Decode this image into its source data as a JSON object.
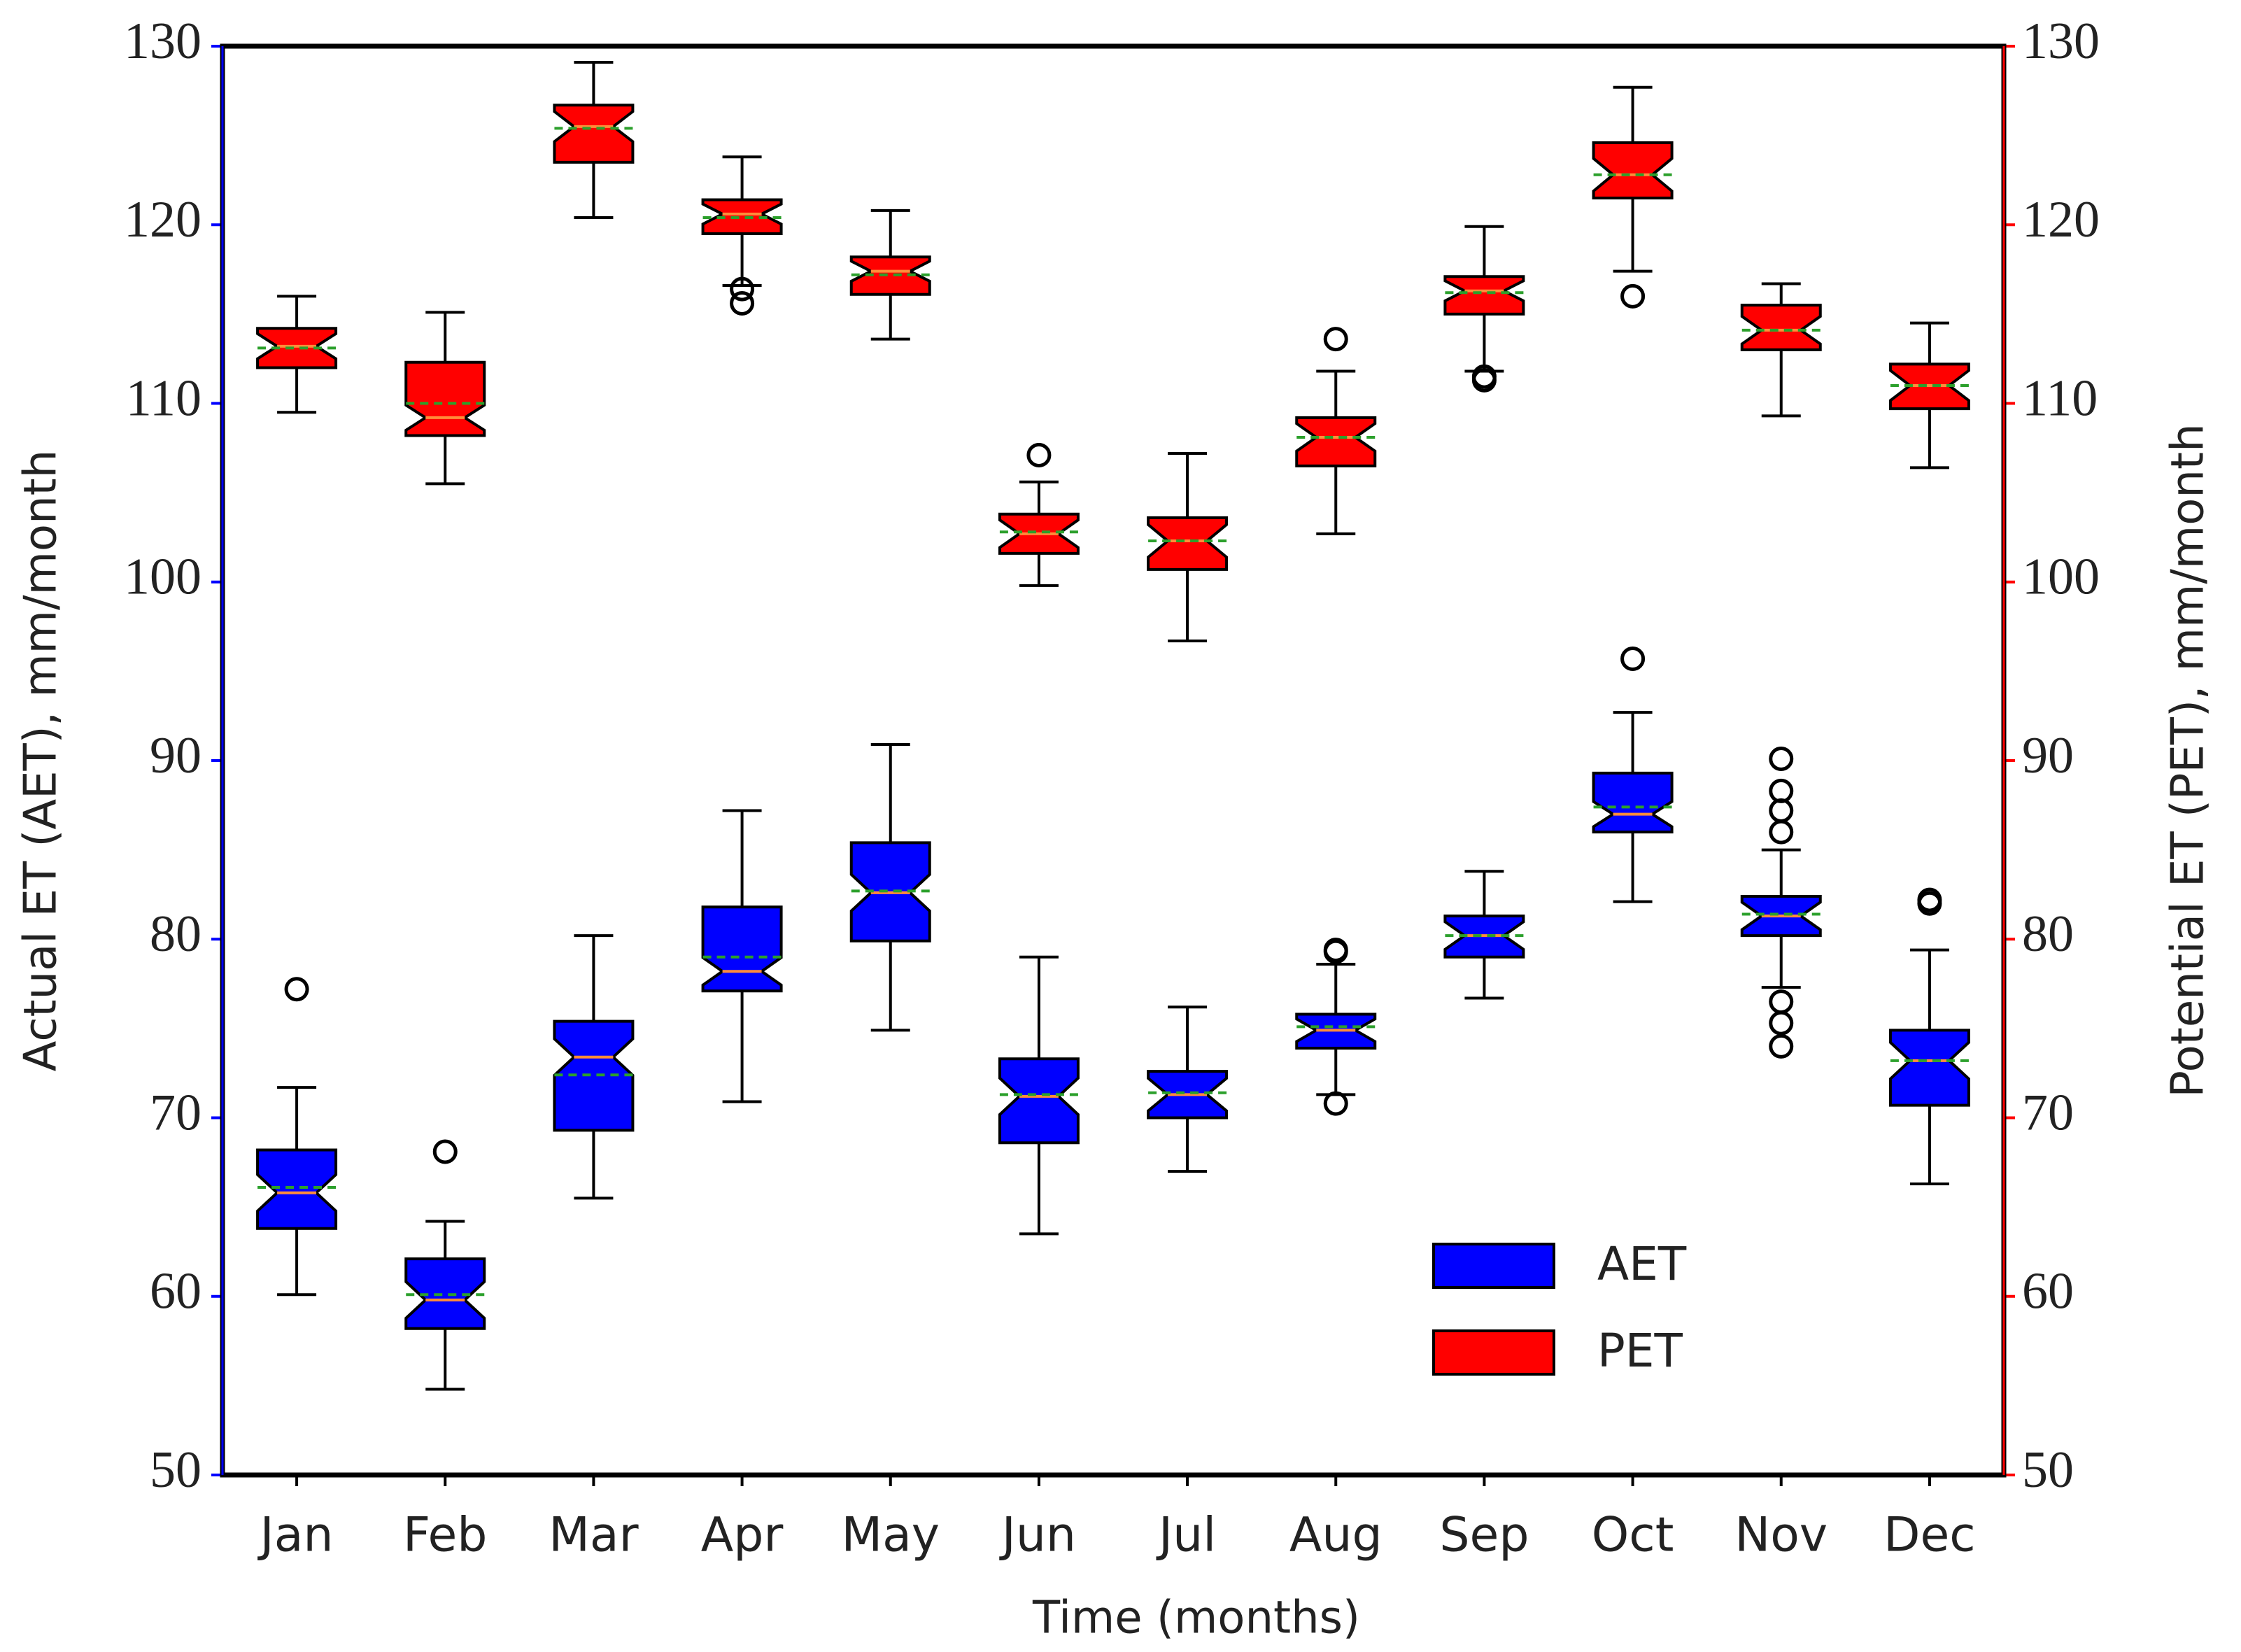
{
  "chart_data": {
    "type": "box",
    "notch": true,
    "categories": [
      "Jan",
      "Feb",
      "Mar",
      "Apr",
      "May",
      "Jun",
      "Jul",
      "Aug",
      "Sep",
      "Oct",
      "Nov",
      "Dec"
    ],
    "x_label": "Time (months)",
    "y_label": "Actual ET (AET), mm/month",
    "y2_label": "Potential ET (PET), mm/month",
    "ylim": [
      50,
      130
    ],
    "yticks": [
      50,
      60,
      70,
      80,
      90,
      100,
      110,
      120,
      130
    ],
    "y2lim": [
      50,
      130
    ],
    "y2ticks": [
      50,
      60,
      70,
      80,
      90,
      100,
      110,
      120,
      130
    ],
    "legend": "lower right",
    "median_color": "#ff8c3a",
    "mean_color": "#2ca02c",
    "series": [
      {
        "name": "AET",
        "color": "#0000ff",
        "axis": "y",
        "whislo": [
          60.1,
          54.8,
          65.5,
          70.9,
          74.9,
          63.5,
          67.0,
          71.3,
          76.7,
          82.1,
          77.3,
          66.3
        ],
        "q1": [
          63.8,
          58.2,
          69.3,
          77.1,
          79.9,
          68.6,
          70.0,
          73.9,
          79.0,
          86.0,
          80.2,
          70.7
        ],
        "med": [
          65.8,
          59.8,
          73.4,
          78.2,
          82.6,
          71.2,
          71.3,
          74.9,
          80.2,
          87.0,
          81.3,
          73.2
        ],
        "mean": [
          66.1,
          60.1,
          72.4,
          79.0,
          82.7,
          71.3,
          71.4,
          75.1,
          80.2,
          87.4,
          81.4,
          73.2
        ],
        "q3": [
          68.2,
          62.1,
          75.4,
          81.8,
          85.4,
          73.3,
          72.6,
          75.8,
          81.3,
          89.3,
          82.4,
          74.9
        ],
        "whishi": [
          71.7,
          64.2,
          80.2,
          87.2,
          90.9,
          79.0,
          76.2,
          78.6,
          83.8,
          92.7,
          85.0,
          79.4
        ],
        "fliers": [
          [
            77.2
          ],
          [
            68.1
          ],
          [],
          [],
          [],
          [],
          [],
          [
            79.4,
            79.3,
            70.8
          ],
          [],
          [
            95.7
          ],
          [
            90.1,
            88.3,
            87.2,
            86.0,
            76.5,
            75.3,
            74.0
          ],
          [
            82.2,
            82.0
          ]
        ]
      },
      {
        "name": "PET",
        "color": "#ff0000",
        "axis": "y2",
        "whislo": [
          109.5,
          105.5,
          120.4,
          116.6,
          113.6,
          99.8,
          96.7,
          102.7,
          111.8,
          117.4,
          109.3,
          106.4
        ],
        "q1": [
          112.0,
          108.2,
          123.5,
          119.5,
          116.1,
          101.6,
          100.7,
          106.5,
          115.0,
          121.5,
          113.0,
          109.7
        ],
        "med": [
          113.2,
          109.2,
          125.5,
          120.6,
          117.4,
          102.7,
          102.3,
          108.1,
          116.3,
          122.8,
          114.1,
          111.0
        ],
        "mean": [
          113.1,
          110.0,
          125.4,
          120.4,
          117.2,
          102.8,
          102.3,
          108.1,
          116.2,
          122.8,
          114.1,
          111.0
        ],
        "q3": [
          114.2,
          112.3,
          126.7,
          121.4,
          118.2,
          103.8,
          103.6,
          109.2,
          117.1,
          124.6,
          115.5,
          112.2
        ],
        "whishi": [
          116.0,
          115.1,
          129.1,
          123.8,
          120.8,
          105.6,
          107.2,
          111.8,
          119.9,
          127.7,
          116.7,
          114.5
        ],
        "fliers": [
          [],
          [],
          [],
          [
            116.4,
            115.6
          ],
          [],
          [
            107.1
          ],
          [],
          [
            113.6
          ],
          [
            111.5,
            111.3
          ],
          [
            116.0
          ],
          [],
          []
        ]
      }
    ]
  }
}
